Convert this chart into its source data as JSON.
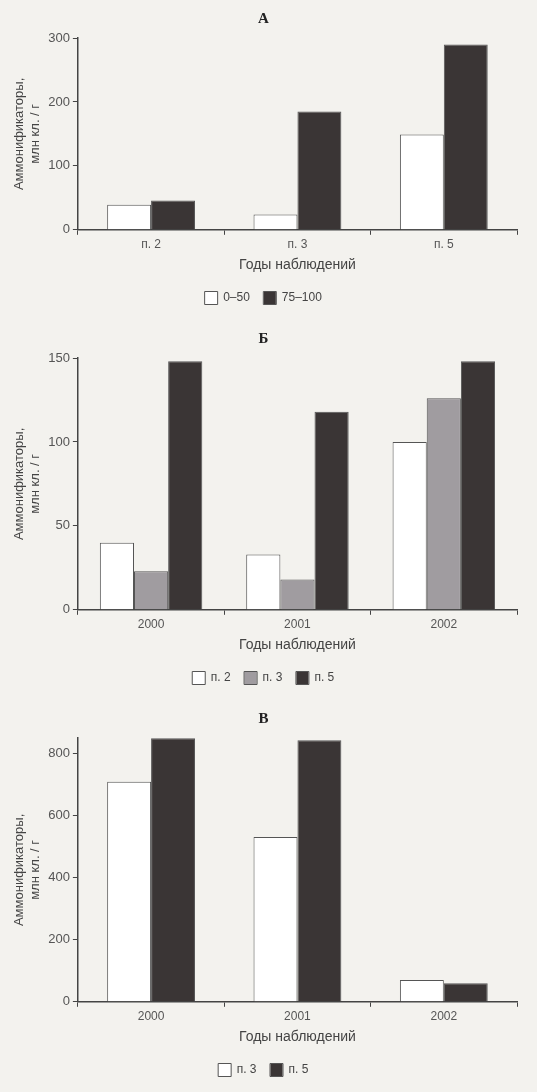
{
  "chart_data": [
    {
      "type": "bar",
      "title": "А",
      "xlabel": "Годы наблюдений",
      "ylabel": "Аммонификаторы, млн кл. / г",
      "categories": [
        "п. 2",
        "п. 3",
        "п. 5"
      ],
      "series": [
        {
          "name": "0–50",
          "color": "#ffffff",
          "values": [
            39,
            24,
            149
          ]
        },
        {
          "name": "75–100",
          "color": "#3a3535",
          "values": [
            46,
            185,
            290
          ]
        }
      ],
      "ylim": [
        0,
        300
      ],
      "yticks": [
        0,
        100,
        200,
        300
      ],
      "grid": false,
      "legend": "bottom"
    },
    {
      "type": "bar",
      "title": "Б",
      "xlabel": "Годы наблюдений",
      "ylabel": "Аммонификаторы, млн кл. / г",
      "categories": [
        "2000",
        "2001",
        "2002"
      ],
      "series": [
        {
          "name": "п. 2",
          "color": "#ffffff",
          "values": [
            40,
            33,
            100
          ]
        },
        {
          "name": "п. 3",
          "color": "#a09ca0",
          "values": [
            23,
            18,
            126
          ]
        },
        {
          "name": "п. 5",
          "color": "#3a3535",
          "values": [
            148,
            118,
            148
          ]
        }
      ],
      "ylim": [
        0,
        150
      ],
      "yticks": [
        0,
        50,
        100,
        150
      ],
      "grid": false,
      "legend": "bottom"
    },
    {
      "type": "bar",
      "title": "В",
      "xlabel": "Годы наблюдений",
      "ylabel": "Аммонификаторы, млн кл. / г",
      "categories": [
        "2000",
        "2001",
        "2002"
      ],
      "series": [
        {
          "name": "п. 3",
          "color": "#ffffff",
          "values": [
            709,
            531,
            70
          ]
        },
        {
          "name": "п. 5",
          "color": "#3a3535",
          "values": [
            849,
            843,
            60
          ]
        }
      ],
      "ylim": [
        0,
        850
      ],
      "yticks": [
        0,
        200,
        400,
        600,
        800
      ],
      "grid": false,
      "legend": "bottom"
    }
  ]
}
